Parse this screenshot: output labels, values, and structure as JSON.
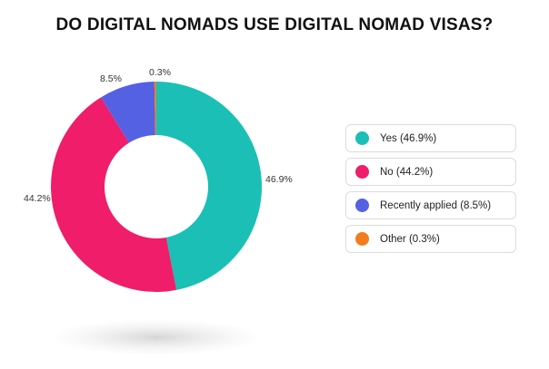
{
  "chart_data": {
    "type": "pie",
    "title": "DO DIGITAL NOMADS USE DIGITAL NOMAD VISAS?",
    "donut": true,
    "categories": [
      "Yes",
      "No",
      "Recently applied",
      "Other"
    ],
    "values": [
      46.9,
      44.2,
      8.5,
      0.3
    ],
    "slice_labels": [
      "46.9%",
      "44.2%",
      "8.5%",
      "0.3%"
    ],
    "colors": [
      "#1bbfb5",
      "#f01d6a",
      "#5561e3",
      "#f27d1c"
    ],
    "legend_entries": [
      "Yes (46.9%)",
      "No (44.2%)",
      "Recently applied (8.5%)",
      "Other (0.3%)"
    ],
    "legend_placement": "right"
  }
}
